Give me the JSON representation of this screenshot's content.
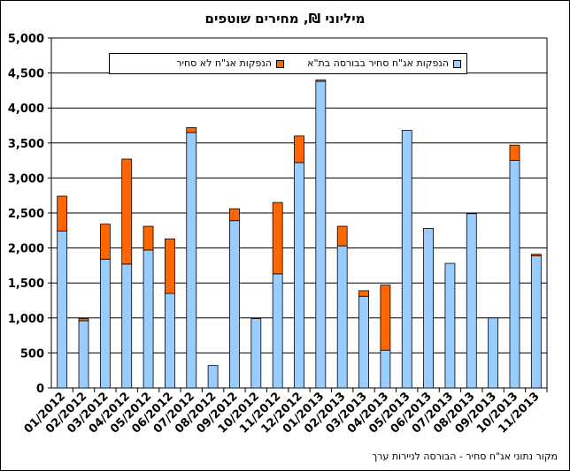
{
  "title": "מיליוני ₪, מחירים שוטפים",
  "source_note": "מקור נתוני אג\"ח סחיר - הבורסה לניירות ערך",
  "colors": {
    "tradable": "#99CCFF",
    "nontradable": "#FF6600",
    "axis": "#000000",
    "grid": "#000000"
  },
  "chart_data": {
    "type": "bar",
    "stacked": true,
    "categories": [
      "01/2012",
      "02/2012",
      "03/2012",
      "04/2012",
      "05/2012",
      "06/2012",
      "07/2012",
      "08/2012",
      "09/2012",
      "10/2012",
      "11/2012",
      "12/2012",
      "01/2013",
      "02/2013",
      "03/2013",
      "04/2013",
      "05/2013",
      "06/2013",
      "07/2013",
      "08/2013",
      "09/2013",
      "10/2013",
      "11/2013"
    ],
    "series": [
      {
        "name": "הנפקות אג\"ח סחיר בבורסה בת\"א",
        "color": "#99CCFF",
        "values": [
          2240,
          960,
          1840,
          1770,
          1970,
          1350,
          3650,
          320,
          2390,
          990,
          1630,
          3220,
          4380,
          2030,
          1310,
          540,
          3680,
          2280,
          1780,
          2490,
          1000,
          3250,
          1890
        ]
      },
      {
        "name": "הנפקות אג\"ח לא סחיר",
        "color": "#FF6600",
        "values": [
          500,
          30,
          500,
          1500,
          340,
          780,
          70,
          0,
          170,
          0,
          1020,
          380,
          20,
          280,
          80,
          930,
          0,
          0,
          0,
          0,
          0,
          220,
          20
        ]
      }
    ],
    "ylim": [
      0,
      5000
    ],
    "yticks": [
      0,
      500,
      1000,
      1500,
      2000,
      2500,
      3000,
      3500,
      4000,
      4500,
      5000
    ],
    "ytick_labels": [
      "0",
      "500",
      "1,000",
      "1,500",
      "2,000",
      "2,500",
      "3,000",
      "3,500",
      "4,000",
      "4,500",
      "5,000"
    ],
    "grid": true,
    "legend_position": "top"
  }
}
